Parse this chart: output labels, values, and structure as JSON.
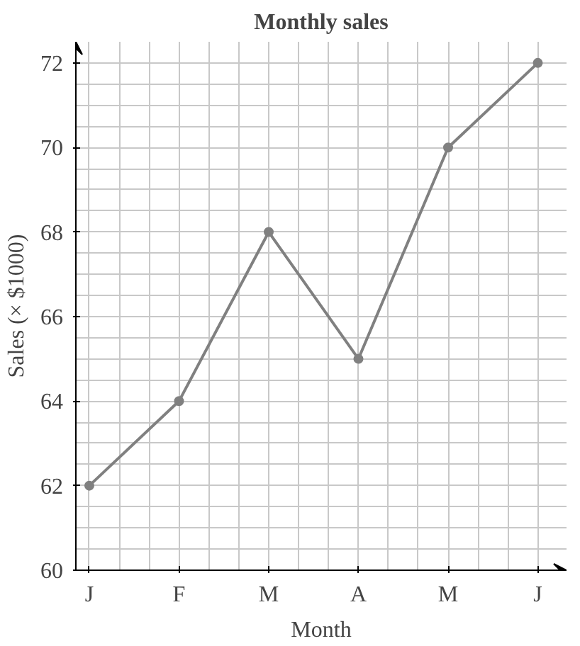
{
  "chart_data": {
    "type": "line",
    "title": "Monthly sales",
    "xlabel": "Month",
    "ylabel": "Sales (× $1000)",
    "categories": [
      "J",
      "F",
      "M",
      "A",
      "M",
      "J"
    ],
    "series": [
      {
        "color": "#808080",
        "values": [
          62,
          64,
          68,
          65,
          70,
          72
        ]
      }
    ],
    "ylim": [
      60,
      72.5
    ],
    "yticks": [
      60,
      62,
      64,
      66,
      68,
      70,
      72
    ],
    "grid": true,
    "marker": "circle",
    "line_style": "solid"
  }
}
